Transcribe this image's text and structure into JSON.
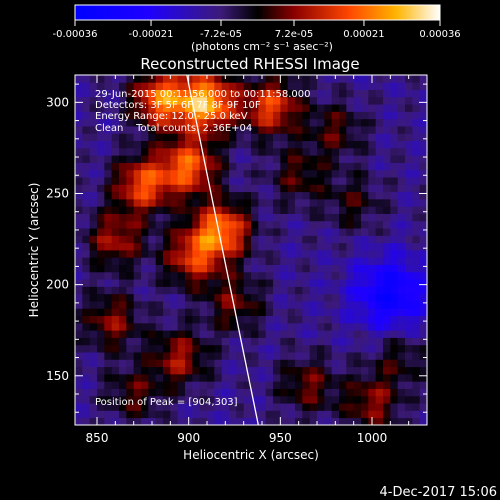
{
  "chart_data": {
    "type": "heatmap",
    "title": "Reconstructed RHESSI Image",
    "xlabel": "Heliocentric X (arcsec)",
    "ylabel": "Heliocentric Y (arcsec)",
    "xlim": [
      838,
      1030
    ],
    "ylim": [
      123,
      315
    ],
    "x_ticks": [
      850,
      900,
      950,
      1000
    ],
    "y_ticks": [
      150,
      200,
      250,
      300
    ],
    "colorbar": {
      "range": [
        -0.00036,
        0.00036
      ],
      "tick_values": [
        -0.00036,
        -0.00021,
        -7.2e-05,
        7.2e-05,
        0.00021,
        0.00036
      ],
      "tick_labels": [
        "-0.00036",
        "-0.00021",
        "-7.2e-05",
        "7.2e-05",
        "0.00021",
        "0.00036"
      ],
      "unit_label": "(photons cm⁻² s⁻¹ asec⁻²)"
    },
    "annotations": [
      "29-Jun-2015 00:11:56.000 to 00:11:58.000",
      "Detectors: 3F 5F 6F 7F 8F 9F 10F",
      "Energy Range: 12.0 - 25.0 keV",
      "Clean    Total counts: 2.36E+04"
    ],
    "peak_label": "Position of Peak = [904,303]",
    "peak": {
      "x": 904,
      "y": 303
    },
    "limb_line": [
      [
        899,
        315
      ],
      [
        938,
        123
      ]
    ],
    "bright_sources": [
      {
        "x": 910,
        "y": 300,
        "value": 0.00036
      },
      {
        "x": 885,
        "y": 302,
        "value": 0.0003
      },
      {
        "x": 945,
        "y": 298,
        "value": 0.00025
      },
      {
        "x": 900,
        "y": 265,
        "value": 0.00028
      },
      {
        "x": 875,
        "y": 255,
        "value": 0.00026
      },
      {
        "x": 918,
        "y": 230,
        "value": 0.0003
      },
      {
        "x": 902,
        "y": 215,
        "value": 0.00022
      },
      {
        "x": 860,
        "y": 225,
        "value": 0.00018
      },
      {
        "x": 858,
        "y": 180,
        "value": 0.00016
      },
      {
        "x": 895,
        "y": 160,
        "value": 0.00018
      },
      {
        "x": 925,
        "y": 190,
        "value": 0.00014
      },
      {
        "x": 965,
        "y": 145,
        "value": 0.00014
      },
      {
        "x": 1000,
        "y": 135,
        "value": 0.00016
      },
      {
        "x": 870,
        "y": 140,
        "value": 0.00012
      },
      {
        "x": 1015,
        "y": 160,
        "value": 0.0001
      },
      {
        "x": 960,
        "y": 260,
        "value": 0.00012
      },
      {
        "x": 990,
        "y": 245,
        "value": 0.0001
      },
      {
        "x": 980,
        "y": 285,
        "value": 0.00012
      }
    ],
    "dark_region": {
      "x": 1010,
      "y": 195,
      "value": -0.00036
    }
  },
  "timestamp": "4-Dec-2017 15:06"
}
